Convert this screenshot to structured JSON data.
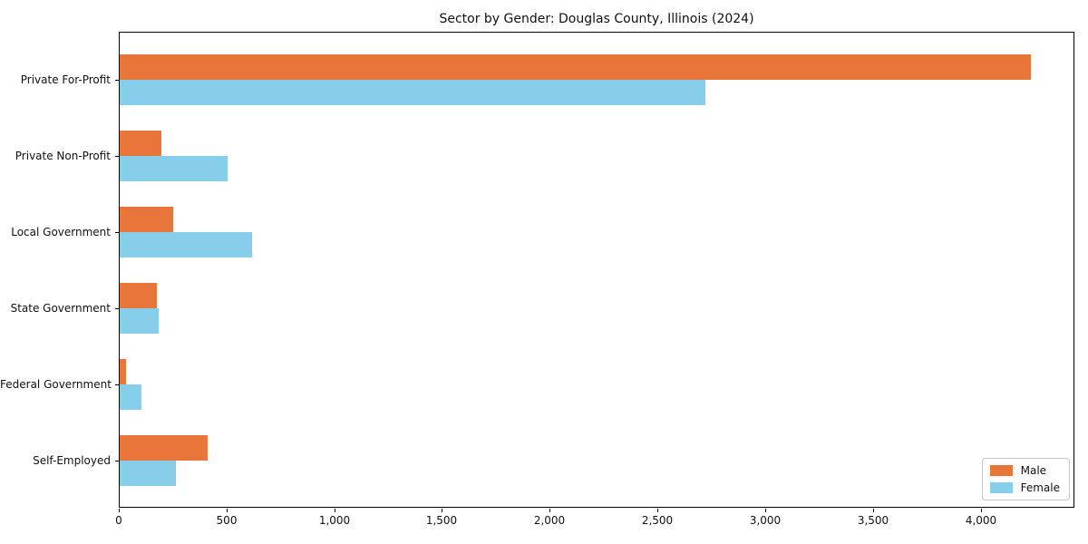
{
  "chart_data": {
    "type": "bar",
    "orientation": "horizontal",
    "title": "Sector by Gender: Douglas County, Illinois (2024)",
    "xlabel": "",
    "ylabel": "",
    "categories": [
      "Private For-Profit",
      "Private Non-Profit",
      "Local Government",
      "State Government",
      "Federal Government",
      "Self-Employed"
    ],
    "series": [
      {
        "name": "Male",
        "color": "#e8763a",
        "values": [
          4230,
          195,
          250,
          173,
          30,
          410
        ]
      },
      {
        "name": "Female",
        "color": "#87ceeb",
        "values": [
          2720,
          500,
          615,
          182,
          100,
          262
        ]
      }
    ],
    "xlim": [
      0,
      4435
    ],
    "xticks": [
      0,
      500,
      1000,
      1500,
      2000,
      2500,
      3000,
      3500,
      4000
    ],
    "xtick_labels": [
      "0",
      "500",
      "1,000",
      "1,500",
      "2,000",
      "2,500",
      "3,000",
      "3,500",
      "4,000"
    ],
    "grid": false,
    "legend_position": "lower right"
  }
}
